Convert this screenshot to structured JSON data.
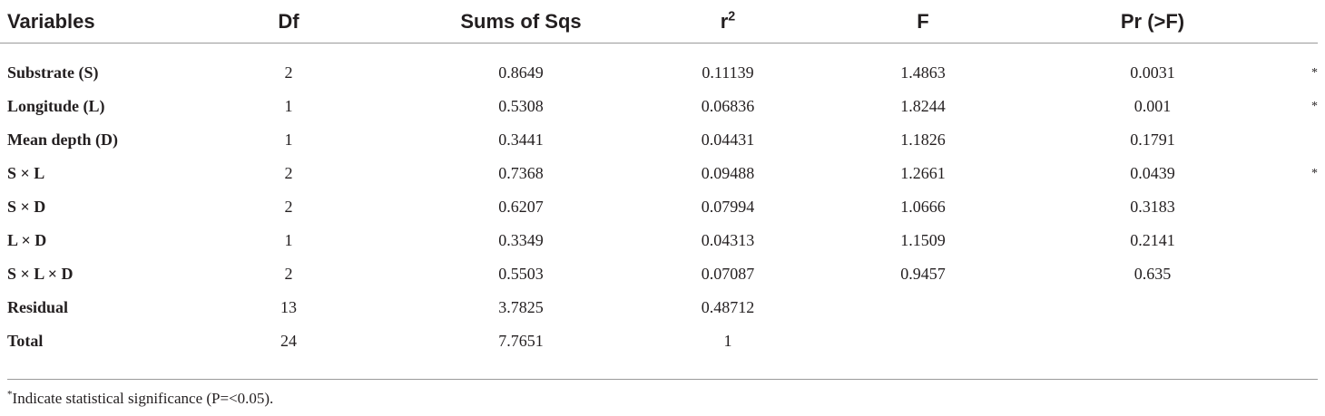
{
  "table": {
    "headers": {
      "variables": "Variables",
      "df": "Df",
      "sums": "Sums of Sqs",
      "r2_base": "r",
      "r2_sup": "2",
      "f": "F",
      "pr": "Pr (>F)"
    },
    "rows": [
      {
        "variable": "Substrate (S)",
        "df": "2",
        "sums": "0.8649",
        "r2": "0.11139",
        "f": "1.4863",
        "pr": "0.0031",
        "sig": "*"
      },
      {
        "variable": "Longitude (L)",
        "df": "1",
        "sums": "0.5308",
        "r2": "0.06836",
        "f": "1.8244",
        "pr": "0.001",
        "sig": "*"
      },
      {
        "variable": "Mean depth (D)",
        "df": "1",
        "sums": "0.3441",
        "r2": "0.04431",
        "f": "1.1826",
        "pr": "0.1791",
        "sig": ""
      },
      {
        "variable": "S × L",
        "df": "2",
        "sums": "0.7368",
        "r2": "0.09488",
        "f": "1.2661",
        "pr": "0.0439",
        "sig": "*"
      },
      {
        "variable": "S × D",
        "df": "2",
        "sums": "0.6207",
        "r2": "0.07994",
        "f": "1.0666",
        "pr": "0.3183",
        "sig": ""
      },
      {
        "variable": "L × D",
        "df": "1",
        "sums": "0.3349",
        "r2": "0.04313",
        "f": "1.1509",
        "pr": "0.2141",
        "sig": ""
      },
      {
        "variable": "S × L × D",
        "df": "2",
        "sums": "0.5503",
        "r2": "0.07087",
        "f": "0.9457",
        "pr": "0.635",
        "sig": ""
      },
      {
        "variable": "Residual",
        "df": "13",
        "sums": "3.7825",
        "r2": "0.48712",
        "f": "",
        "pr": "",
        "sig": ""
      },
      {
        "variable": "Total",
        "df": "24",
        "sums": "7.7651",
        "r2": "1",
        "f": "",
        "pr": "",
        "sig": ""
      }
    ]
  },
  "footnote": {
    "marker": "*",
    "text": "Indicate statistical significance (P=<0.05)."
  }
}
